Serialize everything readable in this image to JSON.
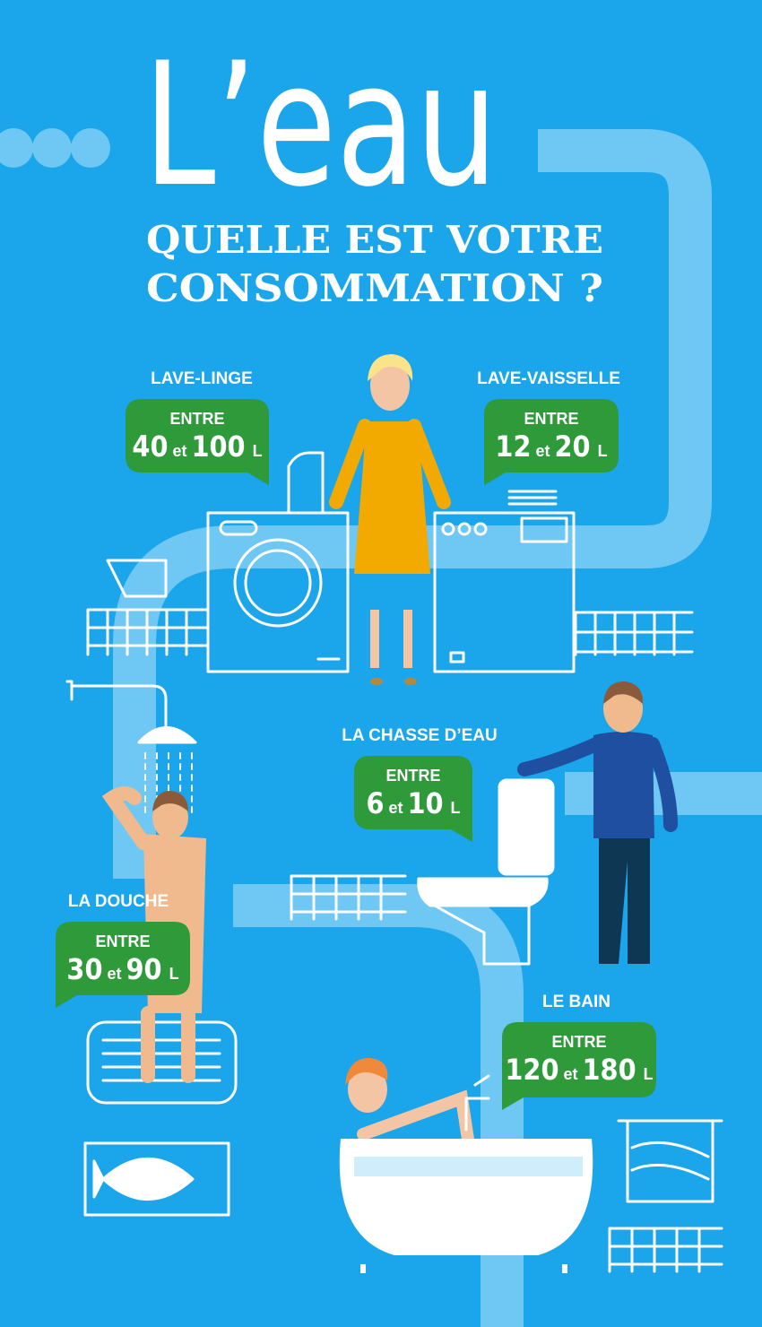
{
  "title": "L’eau",
  "subtitle": [
    "QUELLE EST VOTRE",
    "CONSOMMATION ?"
  ],
  "items": [
    {
      "label": "LAVE-LINGE",
      "from_label": "ENTRE",
      "min": 40,
      "joiner": "et",
      "max": 100,
      "unit": "L"
    },
    {
      "label": "LAVE-VAISSELLE",
      "from_label": "ENTRE",
      "min": 12,
      "joiner": "et",
      "max": 20,
      "unit": "L"
    },
    {
      "label": "LA CHASSE D’EAU",
      "from_label": "ENTRE",
      "min": 6,
      "joiner": "et",
      "max": 10,
      "unit": "L"
    },
    {
      "label": "LA DOUCHE",
      "from_label": "ENTRE",
      "min": 30,
      "joiner": "et",
      "max": 90,
      "unit": "L"
    },
    {
      "label": "LE BAIN",
      "from_label": "ENTRE",
      "min": 120,
      "joiner": "et",
      "max": 180,
      "unit": "L"
    }
  ]
}
